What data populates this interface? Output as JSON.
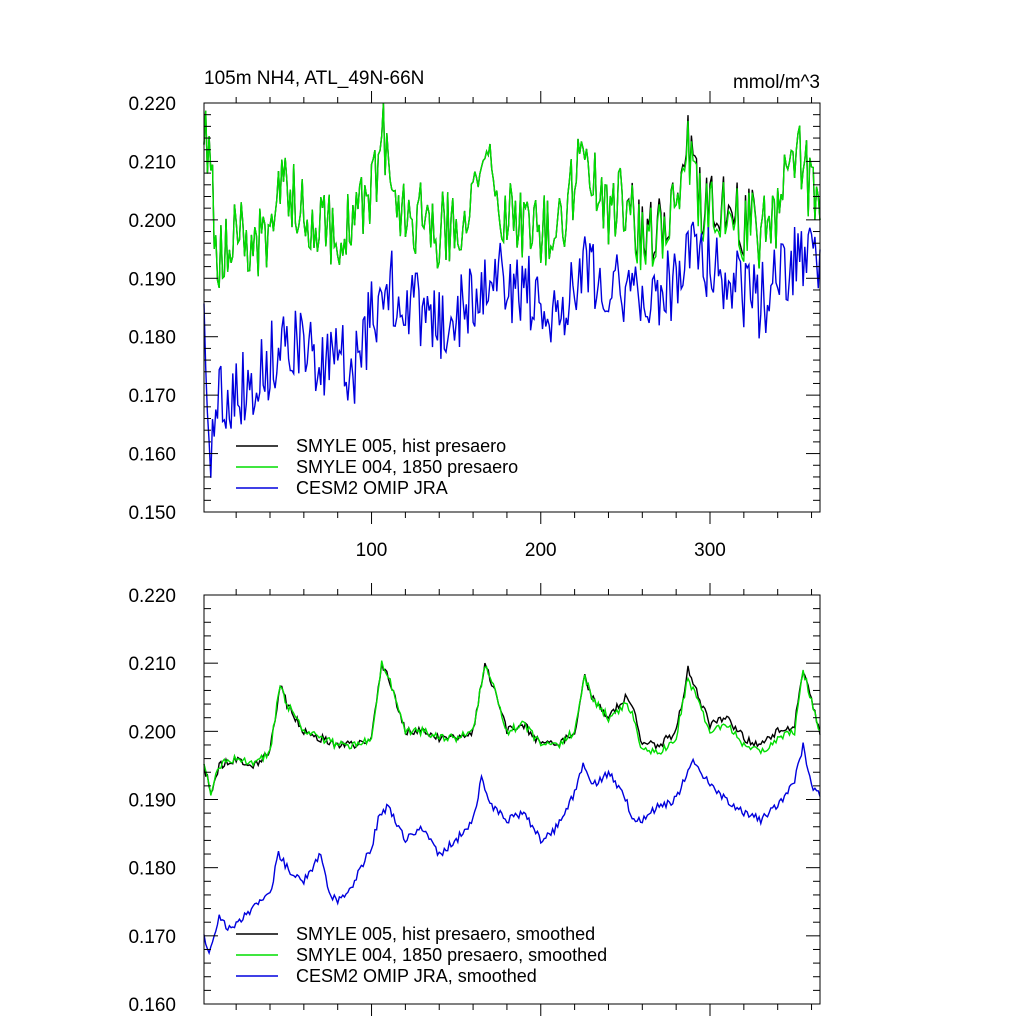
{
  "chart_data": [
    {
      "type": "line",
      "title": "105m NH4, ATL_49N-66N",
      "units": "mmol/m^3",
      "xlim": [
        1,
        365
      ],
      "ylim": [
        0.15,
        0.22
      ],
      "xticks": [
        100,
        200,
        300
      ],
      "xtick_labels": [
        "100",
        "200",
        "300"
      ],
      "yticks": [
        0.15,
        0.16,
        0.17,
        0.18,
        0.19,
        0.2,
        0.21,
        0.22
      ],
      "ytick_labels": [
        "0.150",
        "0.160",
        "0.170",
        "0.180",
        "0.190",
        "0.200",
        "0.210",
        "0.220"
      ],
      "legend_position": "bottom-left",
      "series": [
        {
          "name": "SMYLE 005, hist presaero",
          "color": "#000000",
          "x": [
            1,
            10,
            20,
            30,
            40,
            45,
            50,
            60,
            70,
            80,
            90,
            100,
            107,
            110,
            120,
            130,
            140,
            150,
            160,
            167,
            170,
            180,
            190,
            200,
            210,
            220,
            223,
            230,
            240,
            250,
            260,
            270,
            280,
            287,
            290,
            300,
            310,
            320,
            330,
            340,
            350,
            355,
            365
          ],
          "values": [
            0.216,
            0.193,
            0.198,
            0.195,
            0.197,
            0.208,
            0.207,
            0.2,
            0.201,
            0.197,
            0.199,
            0.205,
            0.214,
            0.208,
            0.201,
            0.2,
            0.198,
            0.2,
            0.201,
            0.213,
            0.207,
            0.2,
            0.2,
            0.198,
            0.198,
            0.206,
            0.214,
            0.208,
            0.202,
            0.203,
            0.198,
            0.199,
            0.202,
            0.213,
            0.208,
            0.201,
            0.203,
            0.2,
            0.198,
            0.202,
            0.213,
            0.21,
            0.2
          ]
        },
        {
          "name": "SMYLE 004, 1850 presaero",
          "color": "#00dd00",
          "x": [
            1,
            10,
            20,
            30,
            40,
            45,
            50,
            60,
            70,
            80,
            90,
            100,
            107,
            110,
            120,
            130,
            140,
            150,
            160,
            167,
            170,
            180,
            190,
            200,
            210,
            220,
            223,
            230,
            240,
            250,
            260,
            270,
            280,
            287,
            290,
            300,
            310,
            320,
            330,
            340,
            350,
            355,
            365
          ],
          "values": [
            0.216,
            0.193,
            0.198,
            0.195,
            0.197,
            0.208,
            0.207,
            0.2,
            0.201,
            0.197,
            0.199,
            0.205,
            0.214,
            0.208,
            0.201,
            0.2,
            0.198,
            0.2,
            0.201,
            0.213,
            0.207,
            0.2,
            0.2,
            0.198,
            0.198,
            0.206,
            0.214,
            0.208,
            0.202,
            0.203,
            0.197,
            0.198,
            0.202,
            0.212,
            0.207,
            0.2,
            0.202,
            0.199,
            0.198,
            0.202,
            0.213,
            0.21,
            0.2
          ]
        },
        {
          "name": "CESM2 OMIP JRA",
          "color": "#0000dd",
          "x": [
            1,
            5,
            10,
            20,
            30,
            40,
            50,
            60,
            70,
            80,
            90,
            100,
            110,
            120,
            130,
            140,
            150,
            160,
            170,
            180,
            190,
            200,
            210,
            220,
            225,
            230,
            240,
            250,
            260,
            270,
            280,
            290,
            300,
            310,
            320,
            330,
            340,
            350,
            360,
            365
          ],
          "values": [
            0.184,
            0.16,
            0.17,
            0.171,
            0.172,
            0.176,
            0.181,
            0.178,
            0.174,
            0.176,
            0.175,
            0.183,
            0.189,
            0.186,
            0.184,
            0.182,
            0.183,
            0.187,
            0.192,
            0.189,
            0.188,
            0.186,
            0.184,
            0.189,
            0.195,
            0.191,
            0.19,
            0.188,
            0.185,
            0.187,
            0.19,
            0.197,
            0.192,
            0.189,
            0.188,
            0.186,
            0.189,
            0.193,
            0.196,
            0.19
          ]
        }
      ],
      "legend": [
        {
          "label": "SMYLE 005, hist presaero",
          "color": "#000000"
        },
        {
          "label": "SMYLE 004, 1850 presaero",
          "color": "#00dd00"
        },
        {
          "label": "CESM2 OMIP JRA",
          "color": "#0000dd"
        }
      ]
    },
    {
      "type": "line",
      "title": "",
      "xlim": [
        1,
        365
      ],
      "ylim": [
        0.16,
        0.22
      ],
      "xticks": [
        100,
        200,
        300
      ],
      "yticks": [
        0.16,
        0.17,
        0.18,
        0.19,
        0.2,
        0.21,
        0.22
      ],
      "ytick_labels": [
        "0.160",
        "0.170",
        "0.180",
        "0.190",
        "0.200",
        "0.210",
        "0.220"
      ],
      "legend_position": "bottom-left",
      "series": [
        {
          "name": "SMYLE 005, hist presaero, smoothed",
          "color": "#000000",
          "x": [
            1,
            5,
            10,
            20,
            30,
            40,
            46,
            50,
            60,
            70,
            80,
            90,
            100,
            106,
            110,
            120,
            130,
            140,
            150,
            160,
            167,
            170,
            180,
            190,
            200,
            210,
            220,
            226,
            230,
            240,
            250,
            255,
            260,
            270,
            280,
            287,
            290,
            300,
            310,
            320,
            330,
            340,
            350,
            355,
            365
          ],
          "values": [
            0.195,
            0.191,
            0.195,
            0.196,
            0.195,
            0.197,
            0.207,
            0.204,
            0.2,
            0.199,
            0.198,
            0.198,
            0.199,
            0.21,
            0.208,
            0.2,
            0.2,
            0.199,
            0.199,
            0.2,
            0.21,
            0.208,
            0.2,
            0.201,
            0.198,
            0.198,
            0.2,
            0.208,
            0.205,
            0.202,
            0.205,
            0.203,
            0.198,
            0.198,
            0.2,
            0.209,
            0.207,
            0.201,
            0.202,
            0.199,
            0.198,
            0.2,
            0.201,
            0.209,
            0.2
          ]
        },
        {
          "name": "SMYLE 004, 1850 presaero, smoothed",
          "color": "#00dd00",
          "x": [
            1,
            5,
            10,
            20,
            30,
            40,
            46,
            50,
            60,
            70,
            80,
            90,
            100,
            106,
            110,
            120,
            130,
            140,
            150,
            160,
            167,
            170,
            180,
            190,
            200,
            210,
            220,
            226,
            230,
            240,
            250,
            255,
            260,
            270,
            280,
            287,
            290,
            300,
            310,
            320,
            330,
            340,
            350,
            355,
            365
          ],
          "values": [
            0.195,
            0.191,
            0.195,
            0.196,
            0.195,
            0.197,
            0.207,
            0.204,
            0.2,
            0.199,
            0.198,
            0.198,
            0.199,
            0.21,
            0.208,
            0.2,
            0.2,
            0.199,
            0.199,
            0.2,
            0.21,
            0.208,
            0.2,
            0.201,
            0.198,
            0.198,
            0.2,
            0.208,
            0.205,
            0.202,
            0.204,
            0.202,
            0.197,
            0.197,
            0.199,
            0.208,
            0.206,
            0.2,
            0.201,
            0.198,
            0.197,
            0.199,
            0.2,
            0.209,
            0.2
          ]
        },
        {
          "name": "CESM2 OMIP JRA, smoothed",
          "color": "#0000dd",
          "x": [
            1,
            4,
            10,
            15,
            20,
            30,
            40,
            45,
            50,
            60,
            70,
            75,
            80,
            90,
            100,
            105,
            110,
            120,
            125,
            130,
            140,
            150,
            160,
            165,
            170,
            180,
            190,
            200,
            210,
            220,
            225,
            230,
            240,
            250,
            255,
            260,
            270,
            280,
            290,
            300,
            310,
            320,
            330,
            340,
            350,
            355,
            360,
            365
          ],
          "values": [
            0.17,
            0.167,
            0.173,
            0.171,
            0.172,
            0.174,
            0.176,
            0.182,
            0.18,
            0.178,
            0.182,
            0.176,
            0.175,
            0.178,
            0.183,
            0.188,
            0.189,
            0.184,
            0.185,
            0.186,
            0.182,
            0.184,
            0.187,
            0.193,
            0.189,
            0.187,
            0.188,
            0.184,
            0.186,
            0.191,
            0.195,
            0.192,
            0.194,
            0.19,
            0.187,
            0.187,
            0.189,
            0.19,
            0.196,
            0.192,
            0.19,
            0.188,
            0.187,
            0.189,
            0.193,
            0.198,
            0.192,
            0.191
          ]
        }
      ],
      "legend": [
        {
          "label": "SMYLE 005, hist presaero, smoothed",
          "color": "#000000"
        },
        {
          "label": "SMYLE 004, 1850 presaero, smoothed",
          "color": "#00dd00"
        },
        {
          "label": "CESM2 OMIP JRA, smoothed",
          "color": "#0000dd"
        }
      ]
    }
  ]
}
